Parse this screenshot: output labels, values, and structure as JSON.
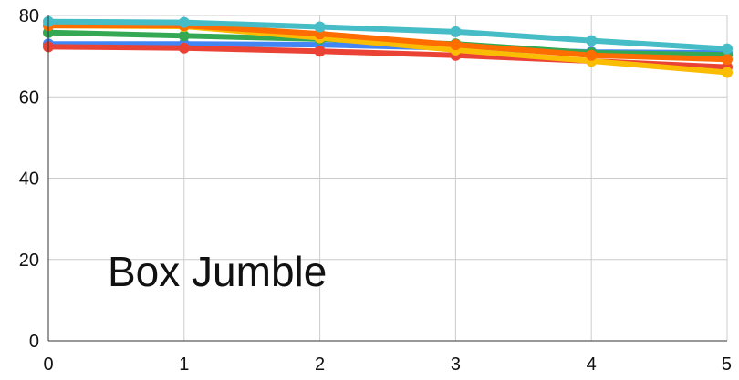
{
  "chart_data": {
    "type": "line",
    "annotation": "Box Jumble",
    "x": [
      0,
      1,
      2,
      3,
      4,
      5
    ],
    "x_tick_labels": [
      "0",
      "1",
      "2",
      "3",
      "4",
      "5"
    ],
    "y_tick_labels": [
      "0",
      "20",
      "40",
      "60",
      "80"
    ],
    "y_ticks": [
      0,
      20,
      40,
      60,
      80
    ],
    "xlim": [
      0,
      5
    ],
    "ylim": [
      0,
      80
    ],
    "grid": true,
    "legend": "none",
    "series": [
      {
        "color": "#4285f4",
        "values": [
          73.0,
          73.0,
          72.8,
          72.0,
          71.0,
          70.8
        ]
      },
      {
        "color": "#34a853",
        "values": [
          75.8,
          75.0,
          74.2,
          73.0,
          70.8,
          70.3
        ]
      },
      {
        "color": "#ea4335",
        "values": [
          72.3,
          72.0,
          71.2,
          70.2,
          68.8,
          67.3
        ]
      },
      {
        "color": "#fbbc04",
        "values": [
          77.5,
          77.3,
          74.5,
          71.5,
          68.8,
          66.0
        ]
      },
      {
        "color": "#ff6d01",
        "values": [
          77.5,
          77.5,
          75.5,
          72.8,
          70.2,
          69.2
        ]
      },
      {
        "color": "#46bdc6",
        "values": [
          78.5,
          78.3,
          77.2,
          76.0,
          73.8,
          71.8
        ]
      }
    ]
  }
}
